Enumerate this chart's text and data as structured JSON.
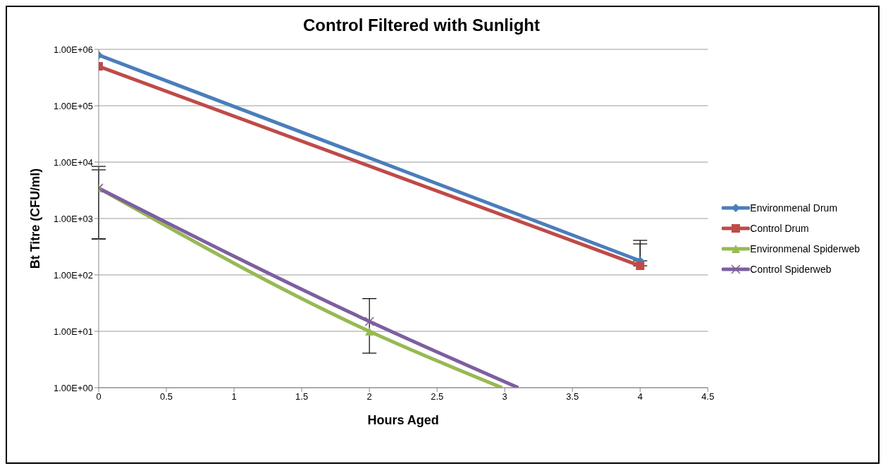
{
  "chart_data": {
    "type": "line",
    "title": "Control Filtered with Sunlight",
    "xlabel": "Hours Aged",
    "ylabel": "Bt Titre (CFU/ml)",
    "log": "y",
    "grid": "y",
    "legend": "right",
    "line_style": "solid",
    "xlim": [
      0,
      4.5
    ],
    "xticks": [
      0,
      0.5,
      1,
      1.5,
      2,
      2.5,
      3,
      3.5,
      4,
      4.5
    ],
    "ylim": [
      1,
      1000000
    ],
    "yticks": [
      {
        "value": 1,
        "label": "1.00E+00"
      },
      {
        "value": 10,
        "label": "1.00E+01"
      },
      {
        "value": 100,
        "label": "1.00E+02"
      },
      {
        "value": 1000,
        "label": "1.00E+03"
      },
      {
        "value": 10000,
        "label": "1.00E+04"
      },
      {
        "value": 100000,
        "label": "1.00E+05"
      },
      {
        "value": 1000000,
        "label": "1.00E+06"
      }
    ],
    "series": [
      {
        "name": "Environmenal Drum",
        "color": "#4a7ebb",
        "marker": "diamond",
        "x": [
          0,
          4
        ],
        "values": [
          790000,
          178
        ],
        "errors": [
          null,
          [
            178,
            410
          ]
        ]
      },
      {
        "name": "Control Drum",
        "color": "#be4b48",
        "marker": "square",
        "x": [
          0,
          4
        ],
        "values": [
          500000,
          145
        ],
        "errors": [
          null,
          [
            145,
            355
          ]
        ]
      },
      {
        "name": "Environmenal Spiderweb",
        "color": "#98b954",
        "marker": "triangle",
        "x": [
          0,
          2,
          2.98
        ],
        "values": [
          3460,
          10,
          1
        ],
        "errors": [
          [
            435,
            7300
          ],
          null,
          null
        ]
      },
      {
        "name": "Control Spiderweb",
        "color": "#7d5fa0",
        "marker": "cross",
        "x": [
          0,
          2,
          3.1
        ],
        "values": [
          3460,
          15,
          1
        ],
        "errors": [
          [
            435,
            8400
          ],
          [
            4.1,
            38
          ],
          null
        ]
      }
    ]
  }
}
